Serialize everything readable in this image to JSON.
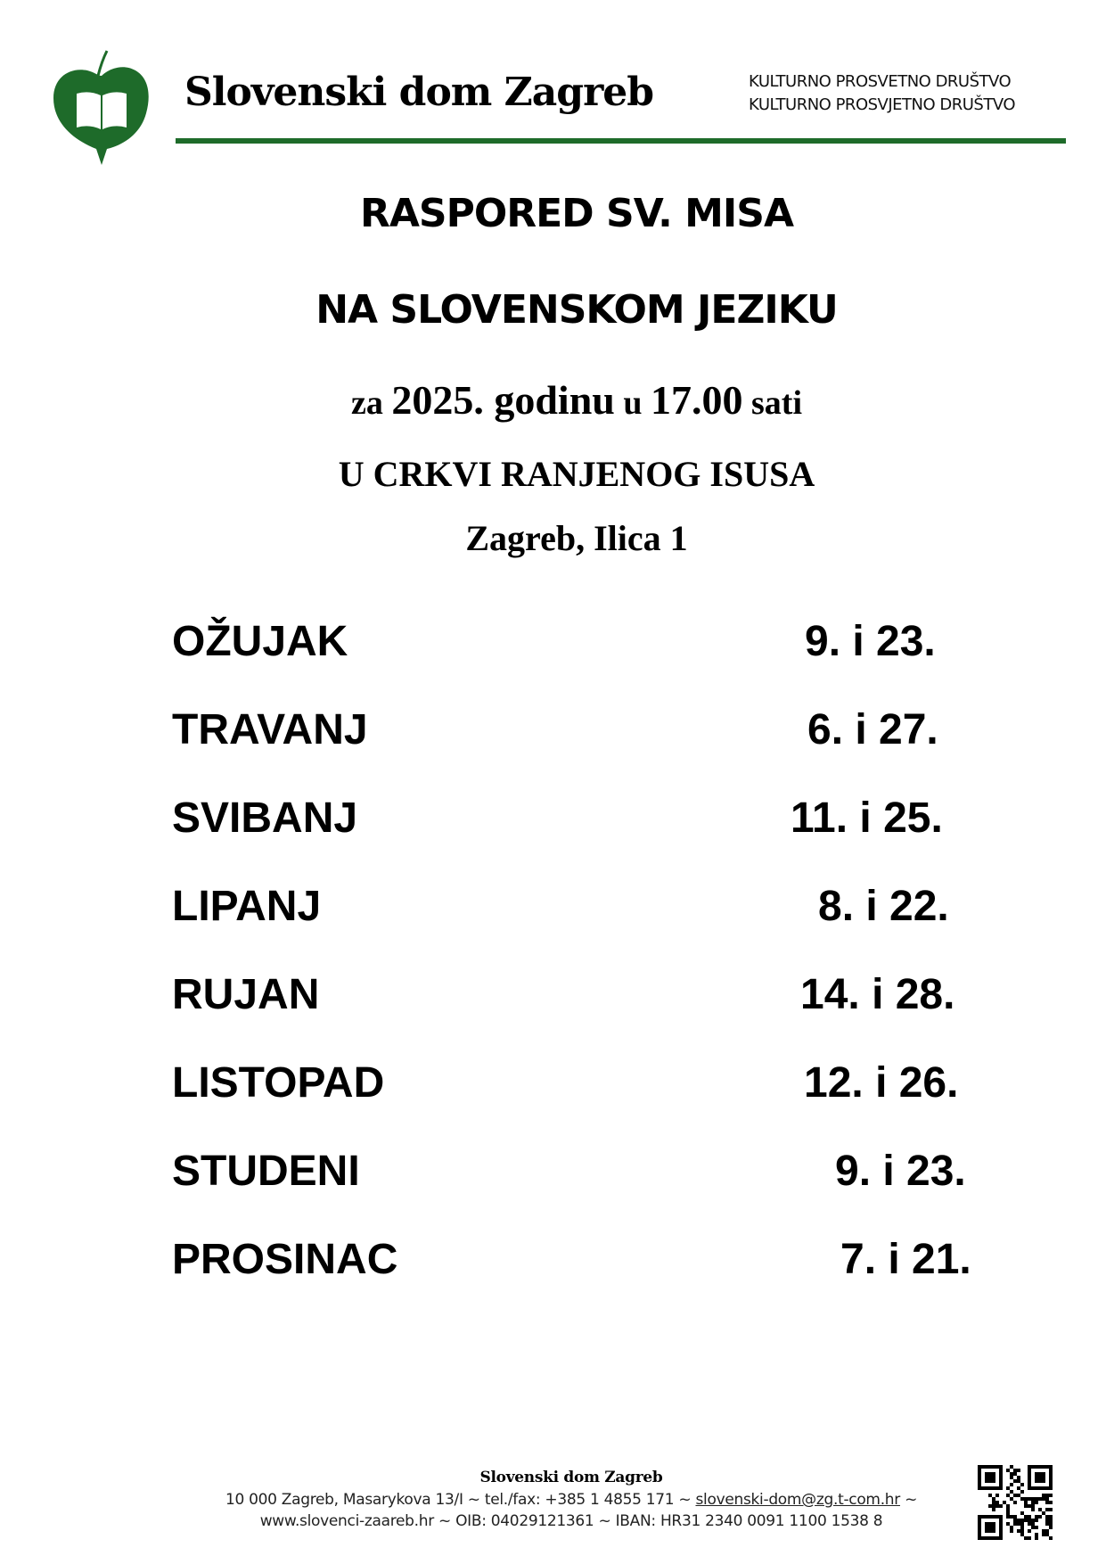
{
  "header": {
    "org_name": "Slovenski dom Zagreb",
    "subtitle_1": "KULTURNO  PROSVETNO  DRUŠTVO",
    "subtitle_2": "KULTURNO PROSVJETNO DRUŠTVO",
    "brand_color": "#1e6b2a"
  },
  "title": {
    "line1": "RASPORED SV. MISA",
    "line2": "NA SLOVENSKOM JEZIKU",
    "line3_a": "za ",
    "line3_b": "2025. godinu",
    "line3_c": " u ",
    "line3_d": "17.00",
    "line3_e": " sati",
    "line4": "U CRKVI RANJENOG ISUSA",
    "line5": "Zagreb, Ilica 1"
  },
  "schedule": [
    {
      "month": "OŽUJAK",
      "dates": "9. i 23."
    },
    {
      "month": "TRAVANJ",
      "dates": "6. i 27."
    },
    {
      "month": "SVIBANJ",
      "dates": "11. i 25."
    },
    {
      "month": "LIPANJ",
      "dates": "8. i 22."
    },
    {
      "month": "RUJAN",
      "dates": "14. i 28."
    },
    {
      "month": "LISTOPAD",
      "dates": "12. i 26."
    },
    {
      "month": "STUDENI",
      "dates": "9. i 23."
    },
    {
      "month": "PROSINAC",
      "dates": "7. i 21."
    }
  ],
  "footer": {
    "name": "Slovenski dom Zagreb",
    "line2_a": "10 000 Zagreb, Masarykova 13/I ~ tel./fax: +385 1 4855 171 ~ ",
    "email": "slovenski-dom@zg.t-com.hr",
    "line2_b": " ~",
    "line3": "www.slovenci-zaareb.hr ~ OIB: 04029121361 ~ IBAN: HR31 2340 0091 1100 1538 8"
  }
}
